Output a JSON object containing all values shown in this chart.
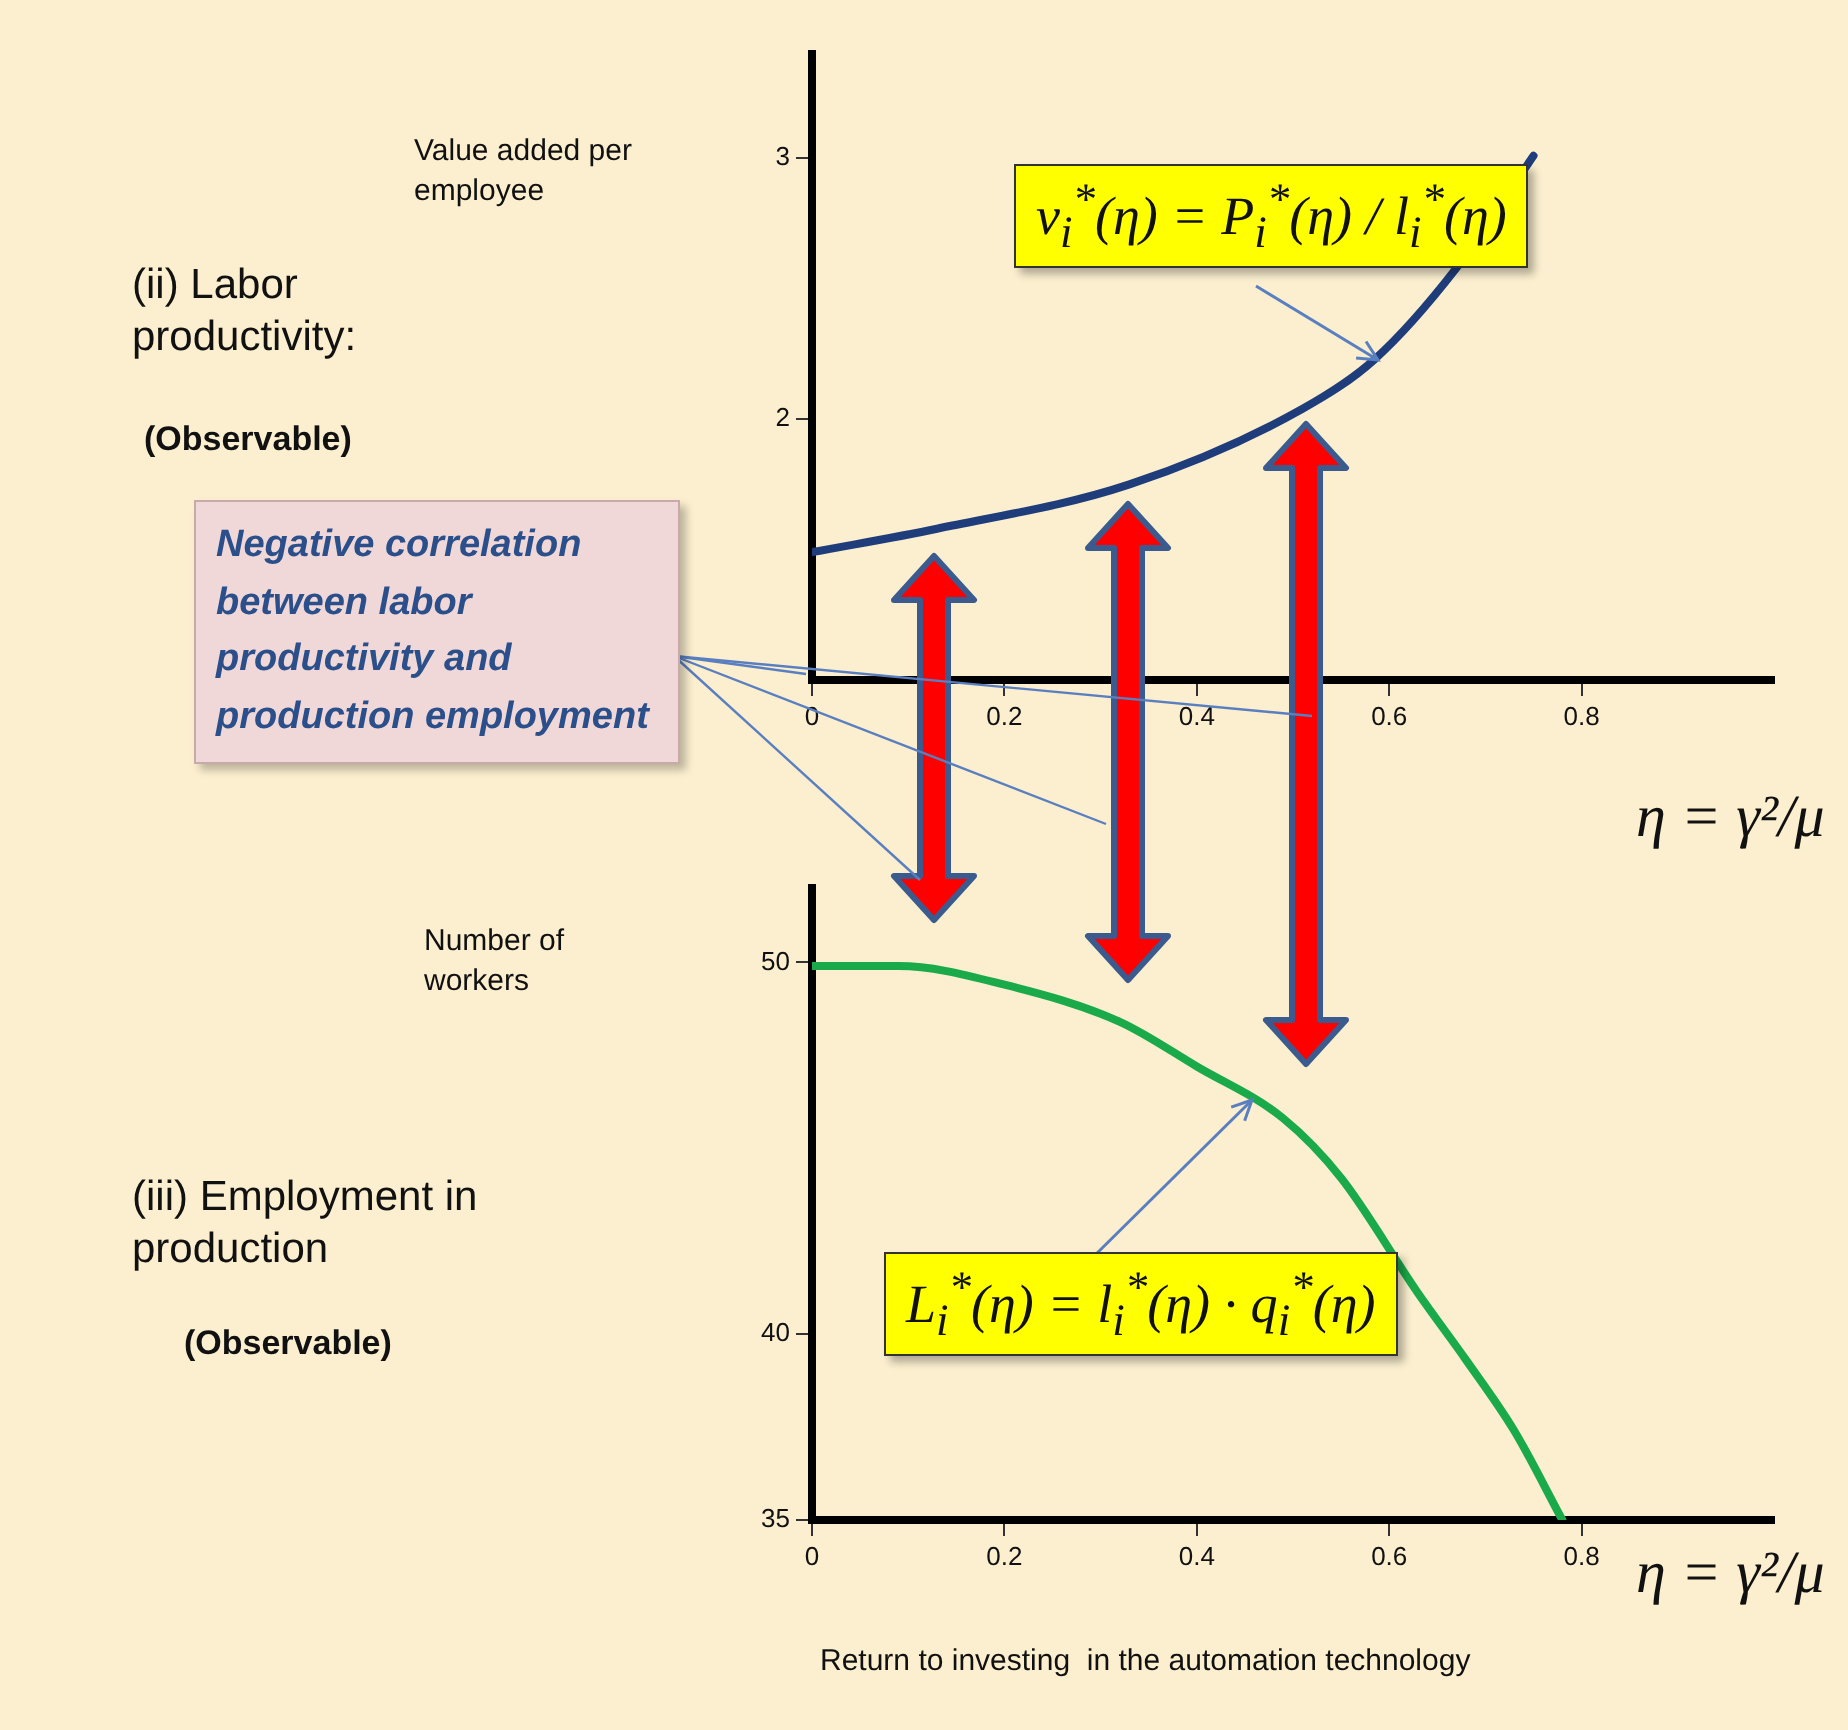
{
  "chart_data": [
    {
      "type": "line",
      "ylabel": "Value added per employee",
      "xlabel": "η = γ²/μ",
      "annotations": [
        "(ii) Labor productivity:",
        "(Observable)",
        "Negative correlation between labor productivity and production employment",
        "v$_{i}$$^{*}$(η) = P$_{i}$$^{*}$(η) / l$_{i}$$^{*}$(η)"
      ],
      "x": [
        0,
        0.13,
        0.33,
        0.51,
        0.585,
        0.67,
        0.75
      ],
      "series": [
        {
          "color": "#1f3d7a",
          "values": [
            1.49,
            1.58,
            1.75,
            2.04,
            2.23,
            2.58,
            3.01
          ]
        }
      ],
      "xlim": [
        0,
        1
      ],
      "ylim": [
        1,
        3.4
      ],
      "xticks": [
        0,
        0.2,
        0.4,
        0.6,
        0.8
      ],
      "yticks": [
        2,
        3
      ],
      "grid": false,
      "marker": "none",
      "line_style": "solid"
    },
    {
      "type": "line",
      "ylabel": "Number of workers",
      "xlabel": "η = γ²/μ",
      "annotations": [
        "(iii) Employment in production",
        "(Observable)",
        "L$_{i}$$^{*}$(η) = l$_{i}$$^{*}$(η) · q$_{i}$$^{*}$(η)",
        "Return to investing  in the automation technology"
      ],
      "x": [
        0,
        0.09,
        0.2,
        0.32,
        0.4,
        0.49,
        0.55,
        0.63,
        0.68,
        0.73,
        0.78
      ],
      "series": [
        {
          "color": "#1aaa4a",
          "values": [
            49.9,
            49.9,
            49.4,
            48.4,
            47.2,
            45.8,
            44.2,
            41.1,
            39.3,
            37.4,
            35
          ]
        }
      ],
      "xlim": [
        0,
        1
      ],
      "ylim": [
        35,
        52
      ],
      "xticks": [
        0,
        0.2,
        0.4,
        0.6,
        0.8
      ],
      "yticks": [
        35,
        40,
        50
      ],
      "grid": false,
      "marker": "none",
      "line_style": "solid"
    }
  ]
}
